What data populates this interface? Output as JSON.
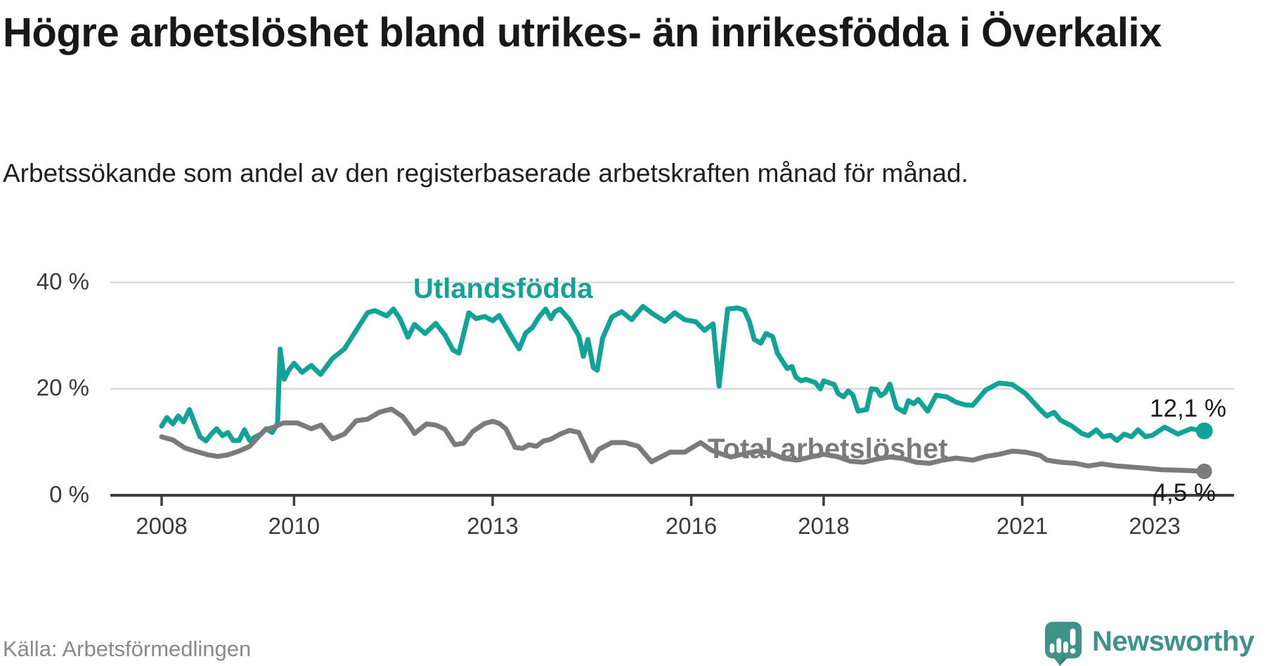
{
  "header": {
    "title": "Högre arbetslöshet bland utrikes- än inrikesfödda i Överkalix",
    "subtitle": "Arbetssökande som andel av den registerbaserade arbetskraften månad för månad."
  },
  "footer": {
    "source": "Källa: Arbetsförmedlingen",
    "brand": "Newsworthy"
  },
  "colors": {
    "teal": "#12a398",
    "gray": "#7b7b7b",
    "grid": "#d8d8d8",
    "axis": "#3c3c3c",
    "logo_teal": "#3f9287",
    "logo_teal_dark": "#2f7f74"
  },
  "chart_data": {
    "type": "line",
    "title": "Högre arbetslöshet bland utrikes- än inrikesfödda i Överkalix",
    "subtitle": "Arbetssökande som andel av den registerbaserade arbetskraften månad för månad.",
    "ylabel": "",
    "xlabel": "",
    "ylim": [
      0,
      42
    ],
    "grid": "horizontal",
    "y_tick_labels": [
      "40 %",
      "20 %",
      "0 %"
    ],
    "grid_values": [
      40,
      20
    ],
    "x_ticks": [
      2008,
      2010,
      2013,
      2016,
      2018,
      2021,
      2023
    ],
    "x_range_years": [
      2008,
      2023.75
    ],
    "series": [
      {
        "name": "Utlandsfödda",
        "color": "#12a398",
        "end_label": "12,1 %",
        "end_value": 12.1,
        "points": [
          [
            2008.0,
            13.0
          ],
          [
            2008.08,
            14.6
          ],
          [
            2008.17,
            13.4
          ],
          [
            2008.25,
            14.9
          ],
          [
            2008.33,
            13.8
          ],
          [
            2008.42,
            16.1
          ],
          [
            2008.5,
            13.5
          ],
          [
            2008.58,
            11.0
          ],
          [
            2008.67,
            10.2
          ],
          [
            2008.75,
            11.5
          ],
          [
            2008.83,
            12.5
          ],
          [
            2008.92,
            11.2
          ],
          [
            2009.0,
            11.8
          ],
          [
            2009.08,
            10.3
          ],
          [
            2009.17,
            10.3
          ],
          [
            2009.25,
            12.3
          ],
          [
            2009.33,
            10.3
          ],
          [
            2009.42,
            11.0
          ],
          [
            2009.5,
            11.5
          ],
          [
            2009.58,
            12.5
          ],
          [
            2009.67,
            11.8
          ],
          [
            2009.75,
            13.5
          ],
          [
            2009.79,
            27.5
          ],
          [
            2009.85,
            21.8
          ],
          [
            2009.92,
            23.5
          ],
          [
            2010.0,
            24.8
          ],
          [
            2010.12,
            23.1
          ],
          [
            2010.26,
            24.4
          ],
          [
            2010.4,
            22.7
          ],
          [
            2010.58,
            25.7
          ],
          [
            2010.76,
            27.5
          ],
          [
            2010.94,
            31.0
          ],
          [
            2011.11,
            34.3
          ],
          [
            2011.22,
            34.7
          ],
          [
            2011.4,
            33.7
          ],
          [
            2011.5,
            35.0
          ],
          [
            2011.6,
            33.2
          ],
          [
            2011.72,
            29.7
          ],
          [
            2011.82,
            32.1
          ],
          [
            2011.98,
            30.4
          ],
          [
            2012.14,
            32.3
          ],
          [
            2012.28,
            30.1
          ],
          [
            2012.4,
            27.3
          ],
          [
            2012.49,
            26.7
          ],
          [
            2012.64,
            34.3
          ],
          [
            2012.75,
            33.2
          ],
          [
            2012.88,
            33.6
          ],
          [
            2013.0,
            32.8
          ],
          [
            2013.1,
            33.8
          ],
          [
            2013.3,
            29.5
          ],
          [
            2013.4,
            27.5
          ],
          [
            2013.5,
            30.5
          ],
          [
            2013.6,
            31.5
          ],
          [
            2013.7,
            33.5
          ],
          [
            2013.8,
            35.0
          ],
          [
            2013.88,
            33.2
          ],
          [
            2013.94,
            34.5
          ],
          [
            2014.02,
            35.0
          ],
          [
            2014.16,
            33.0
          ],
          [
            2014.3,
            30.0
          ],
          [
            2014.37,
            26.1
          ],
          [
            2014.44,
            29.3
          ],
          [
            2014.52,
            24.0
          ],
          [
            2014.58,
            23.5
          ],
          [
            2014.66,
            29.5
          ],
          [
            2014.8,
            33.5
          ],
          [
            2014.95,
            34.5
          ],
          [
            2015.1,
            33.0
          ],
          [
            2015.27,
            35.5
          ],
          [
            2015.43,
            34.0
          ],
          [
            2015.6,
            32.7
          ],
          [
            2015.75,
            34.3
          ],
          [
            2015.9,
            33.0
          ],
          [
            2016.07,
            32.6
          ],
          [
            2016.2,
            31.0
          ],
          [
            2016.33,
            32.2
          ],
          [
            2016.42,
            20.5
          ],
          [
            2016.55,
            35.0
          ],
          [
            2016.7,
            35.2
          ],
          [
            2016.8,
            34.8
          ],
          [
            2016.88,
            32.6
          ],
          [
            2016.95,
            29.3
          ],
          [
            2017.05,
            28.6
          ],
          [
            2017.13,
            30.4
          ],
          [
            2017.23,
            29.8
          ],
          [
            2017.3,
            26.7
          ],
          [
            2017.45,
            23.8
          ],
          [
            2017.52,
            24.2
          ],
          [
            2017.58,
            22.2
          ],
          [
            2017.66,
            21.5
          ],
          [
            2017.73,
            21.8
          ],
          [
            2017.87,
            21.2
          ],
          [
            2017.95,
            20.0
          ],
          [
            2018.0,
            21.5
          ],
          [
            2018.16,
            20.8
          ],
          [
            2018.22,
            19.1
          ],
          [
            2018.3,
            18.5
          ],
          [
            2018.37,
            19.6
          ],
          [
            2018.44,
            18.9
          ],
          [
            2018.52,
            15.8
          ],
          [
            2018.65,
            16.1
          ],
          [
            2018.72,
            20.0
          ],
          [
            2018.8,
            19.9
          ],
          [
            2018.86,
            18.7
          ],
          [
            2018.93,
            19.3
          ],
          [
            2019.0,
            20.9
          ],
          [
            2019.1,
            16.5
          ],
          [
            2019.22,
            15.6
          ],
          [
            2019.28,
            17.8
          ],
          [
            2019.36,
            17.2
          ],
          [
            2019.43,
            18.0
          ],
          [
            2019.5,
            16.9
          ],
          [
            2019.57,
            15.8
          ],
          [
            2019.7,
            18.8
          ],
          [
            2019.86,
            18.5
          ],
          [
            2020.0,
            17.5
          ],
          [
            2020.13,
            17.0
          ],
          [
            2020.25,
            16.9
          ],
          [
            2020.45,
            19.8
          ],
          [
            2020.65,
            21.1
          ],
          [
            2020.85,
            20.8
          ],
          [
            2021.05,
            19.1
          ],
          [
            2021.27,
            16.1
          ],
          [
            2021.37,
            14.9
          ],
          [
            2021.48,
            15.6
          ],
          [
            2021.58,
            14.1
          ],
          [
            2021.75,
            13.0
          ],
          [
            2021.9,
            11.6
          ],
          [
            2022.0,
            11.2
          ],
          [
            2022.12,
            12.3
          ],
          [
            2022.22,
            11.0
          ],
          [
            2022.33,
            11.3
          ],
          [
            2022.43,
            10.3
          ],
          [
            2022.54,
            11.5
          ],
          [
            2022.65,
            11.0
          ],
          [
            2022.75,
            12.3
          ],
          [
            2022.86,
            11.0
          ],
          [
            2022.97,
            11.3
          ],
          [
            2023.15,
            12.8
          ],
          [
            2023.35,
            11.5
          ],
          [
            2023.55,
            12.5
          ],
          [
            2023.75,
            12.1
          ]
        ]
      },
      {
        "name": "Total arbetslöshet",
        "color": "#7b7b7b",
        "end_label": "4,5 %",
        "end_value": 4.5,
        "points": [
          [
            2008.0,
            11.0
          ],
          [
            2008.17,
            10.4
          ],
          [
            2008.35,
            8.9
          ],
          [
            2008.5,
            8.3
          ],
          [
            2008.7,
            7.6
          ],
          [
            2008.85,
            7.3
          ],
          [
            2009.0,
            7.6
          ],
          [
            2009.17,
            8.3
          ],
          [
            2009.33,
            9.2
          ],
          [
            2009.56,
            12.3
          ],
          [
            2009.7,
            12.8
          ],
          [
            2009.84,
            13.6
          ],
          [
            2010.05,
            13.6
          ],
          [
            2010.26,
            12.5
          ],
          [
            2010.41,
            13.2
          ],
          [
            2010.58,
            10.6
          ],
          [
            2010.76,
            11.5
          ],
          [
            2010.94,
            14.0
          ],
          [
            2011.11,
            14.3
          ],
          [
            2011.29,
            15.6
          ],
          [
            2011.47,
            16.2
          ],
          [
            2011.64,
            14.8
          ],
          [
            2011.75,
            13.0
          ],
          [
            2011.82,
            11.6
          ],
          [
            2012.0,
            13.4
          ],
          [
            2012.14,
            13.2
          ],
          [
            2012.28,
            12.4
          ],
          [
            2012.43,
            9.5
          ],
          [
            2012.56,
            9.8
          ],
          [
            2012.7,
            12.0
          ],
          [
            2012.88,
            13.5
          ],
          [
            2013.0,
            13.9
          ],
          [
            2013.1,
            13.5
          ],
          [
            2013.2,
            12.5
          ],
          [
            2013.34,
            9.0
          ],
          [
            2013.45,
            8.8
          ],
          [
            2013.55,
            9.5
          ],
          [
            2013.66,
            9.2
          ],
          [
            2013.77,
            10.2
          ],
          [
            2013.87,
            10.5
          ],
          [
            2014.02,
            11.5
          ],
          [
            2014.16,
            12.2
          ],
          [
            2014.3,
            11.8
          ],
          [
            2014.37,
            10.0
          ],
          [
            2014.5,
            6.5
          ],
          [
            2014.6,
            8.6
          ],
          [
            2014.8,
            9.9
          ],
          [
            2015.0,
            9.9
          ],
          [
            2015.2,
            9.2
          ],
          [
            2015.4,
            6.3
          ],
          [
            2015.68,
            8.1
          ],
          [
            2015.9,
            8.1
          ],
          [
            2016.14,
            9.9
          ],
          [
            2016.3,
            8.5
          ],
          [
            2016.45,
            7.8
          ],
          [
            2016.6,
            7.2
          ],
          [
            2016.8,
            7.8
          ],
          [
            2017.0,
            8.3
          ],
          [
            2017.2,
            7.9
          ],
          [
            2017.4,
            6.9
          ],
          [
            2017.6,
            6.6
          ],
          [
            2017.8,
            7.2
          ],
          [
            2018.0,
            7.7
          ],
          [
            2018.2,
            7.3
          ],
          [
            2018.4,
            6.4
          ],
          [
            2018.6,
            6.2
          ],
          [
            2018.8,
            6.8
          ],
          [
            2019.0,
            7.2
          ],
          [
            2019.2,
            6.9
          ],
          [
            2019.4,
            6.2
          ],
          [
            2019.6,
            6.0
          ],
          [
            2019.8,
            6.6
          ],
          [
            2020.0,
            7.0
          ],
          [
            2020.25,
            6.6
          ],
          [
            2020.45,
            7.3
          ],
          [
            2020.65,
            7.7
          ],
          [
            2020.85,
            8.3
          ],
          [
            2021.05,
            8.1
          ],
          [
            2021.27,
            7.5
          ],
          [
            2021.37,
            6.6
          ],
          [
            2021.58,
            6.2
          ],
          [
            2021.8,
            6.0
          ],
          [
            2022.0,
            5.5
          ],
          [
            2022.2,
            5.9
          ],
          [
            2022.43,
            5.5
          ],
          [
            2022.65,
            5.3
          ],
          [
            2022.86,
            5.1
          ],
          [
            2023.1,
            4.8
          ],
          [
            2023.4,
            4.7
          ],
          [
            2023.75,
            4.5
          ]
        ]
      }
    ]
  }
}
